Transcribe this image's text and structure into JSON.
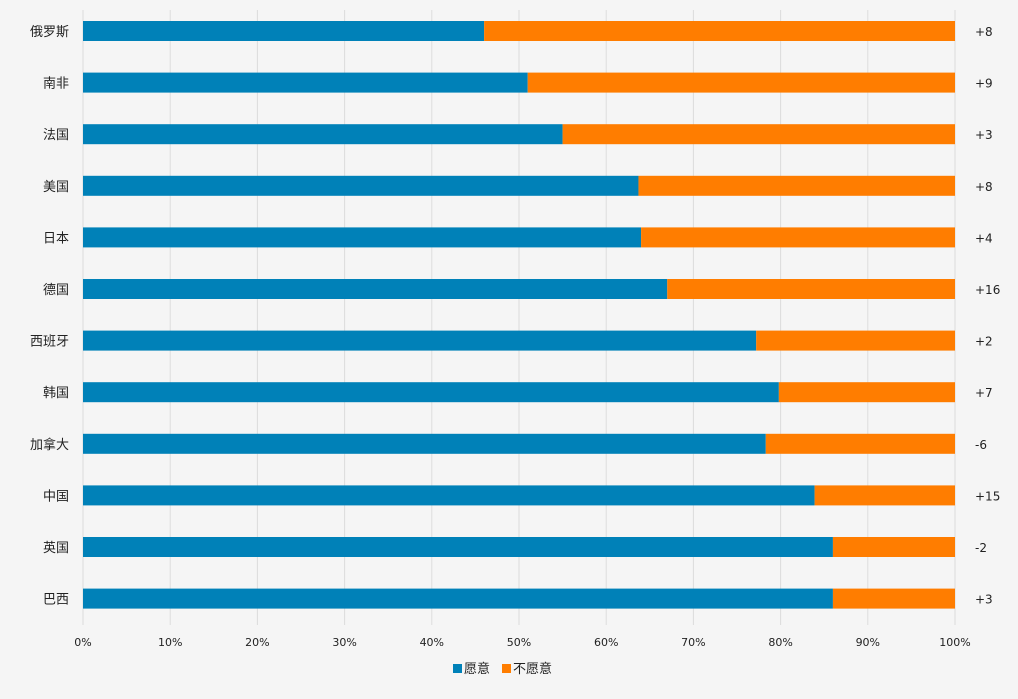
{
  "chart_data": {
    "type": "bar",
    "orientation": "horizontal",
    "stacked": true,
    "title": "",
    "xlabel": "",
    "ylabel": "",
    "xlim": [
      0,
      100
    ],
    "x_ticks": [
      0,
      10,
      20,
      30,
      40,
      50,
      60,
      70,
      80,
      90,
      100
    ],
    "x_tick_labels": [
      "0%",
      "10%",
      "20%",
      "30%",
      "40%",
      "50%",
      "60%",
      "70%",
      "80%",
      "90%",
      "100%"
    ],
    "grid": true,
    "legend_position": "bottom-center",
    "categories": [
      "俄罗斯",
      "南非",
      "法国",
      "美国",
      "日本",
      "德国",
      "西班牙",
      "韩国",
      "加拿大",
      "中国",
      "英国",
      "巴西"
    ],
    "series": [
      {
        "name": "愿意",
        "color": "#0081b8",
        "values": [
          46,
          51,
          55,
          63.7,
          64,
          67,
          77.2,
          79.8,
          78.3,
          83.9,
          86,
          86
        ]
      },
      {
        "name": "不愿意",
        "color": "#ff7d00",
        "values": [
          54,
          49,
          45,
          36.3,
          36,
          33,
          22.8,
          20.2,
          21.7,
          16.1,
          14,
          14
        ]
      }
    ],
    "annotations": [
      "+8",
      "+9",
      "+3",
      "+8",
      "+4",
      "+16",
      "+2",
      "+7",
      "-6",
      "+15",
      "-2",
      "+3"
    ]
  }
}
